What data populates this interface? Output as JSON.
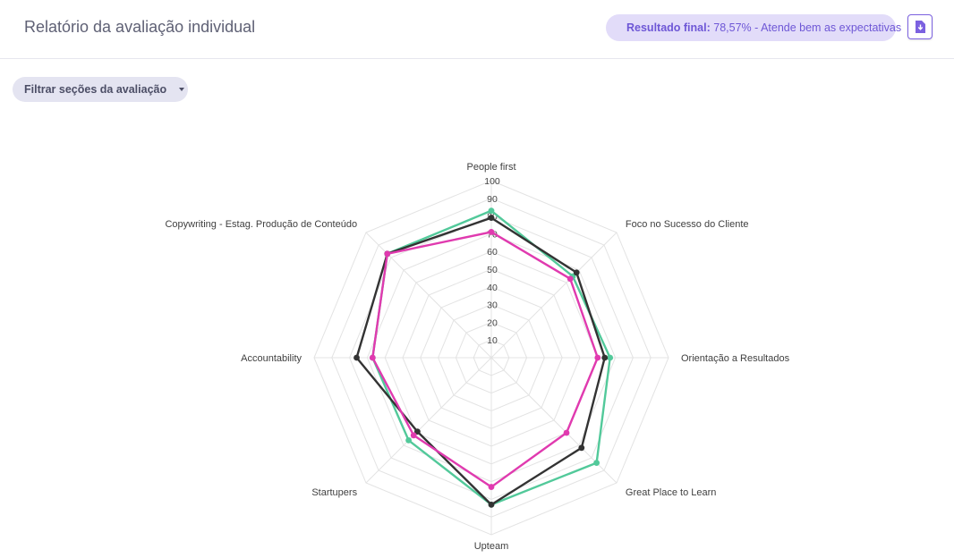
{
  "header": {
    "title": "Relatório da avaliação individual",
    "result_label": "Resultado final:",
    "result_value": "78,57% - Atende bem as expectativas"
  },
  "filter": {
    "label": "Filtrar seções da avaliação"
  },
  "icons": {
    "result": "bar-chart-icon",
    "download": "file-download-icon",
    "filter_caret": "caret-down-icon"
  },
  "colors": {
    "accent": "#7b61e0",
    "series_green": "#52c99a",
    "series_dark": "#333333",
    "series_magenta": "#e03aaf"
  },
  "chart_data": {
    "type": "radar",
    "categories": [
      "People first",
      "Foco no Sucesso do Cliente",
      "Orientação a Resultados",
      "Great Place to Learn",
      "Upteam",
      "Startupers",
      "Accountability",
      "Copywriting - Estag. Produção de Conteúdo"
    ],
    "ticks": [
      10,
      20,
      30,
      40,
      50,
      60,
      70,
      80,
      90,
      100
    ],
    "rmax": 100,
    "grid": true,
    "series": [
      {
        "color": "#52c99a",
        "values": [
          83,
          65,
          67,
          84,
          83,
          66,
          67,
          83
        ]
      },
      {
        "color": "#333333",
        "values": [
          79,
          68,
          64,
          72,
          83,
          59,
          76,
          83
        ]
      },
      {
        "color": "#e03aaf",
        "values": [
          71,
          63,
          60,
          60,
          73,
          62,
          67,
          83
        ]
      }
    ]
  }
}
